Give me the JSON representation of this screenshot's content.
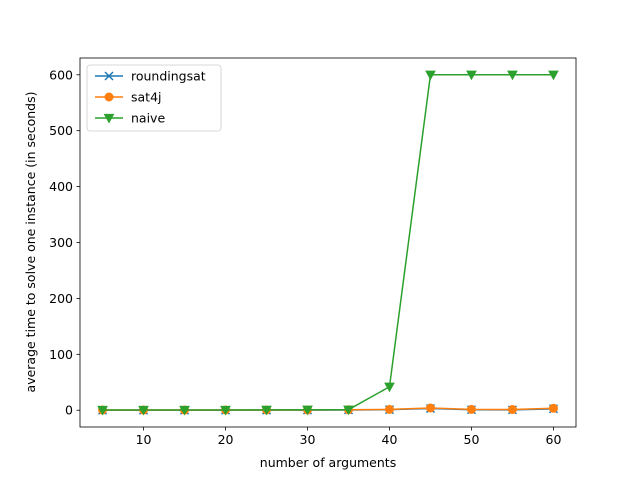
{
  "chart_data": {
    "type": "line",
    "xlabel": "number of arguments",
    "ylabel": "average time to solve one instance (in seconds)",
    "xlim": [
      2.25,
      62.75
    ],
    "ylim": [
      -30,
      630
    ],
    "xticks": [
      10,
      20,
      30,
      40,
      50,
      60
    ],
    "yticks": [
      0,
      100,
      200,
      300,
      400,
      500,
      600
    ],
    "grid": false,
    "legend_position": "top-left",
    "x": [
      5,
      10,
      15,
      20,
      25,
      30,
      35,
      40,
      45,
      50,
      55,
      60
    ],
    "series": [
      {
        "name": "roundingsat",
        "color": "#1f77b4",
        "marker": "x",
        "values": [
          0.1,
          0.1,
          0.1,
          0.1,
          0.1,
          0.2,
          0.4,
          1.0,
          3.0,
          0.8,
          0.6,
          2.5
        ]
      },
      {
        "name": "sat4j",
        "color": "#ff7f0e",
        "marker": "circle",
        "values": [
          0.3,
          0.3,
          0.3,
          0.4,
          0.4,
          0.5,
          0.8,
          1.5,
          4.0,
          1.5,
          1.2,
          3.5
        ]
      },
      {
        "name": "naive",
        "color": "#2ca02c",
        "marker": "triangle-down",
        "values": [
          0.5,
          0.5,
          0.5,
          0.5,
          0.6,
          0.8,
          1.0,
          42,
          600,
          600,
          600,
          600
        ]
      }
    ]
  }
}
